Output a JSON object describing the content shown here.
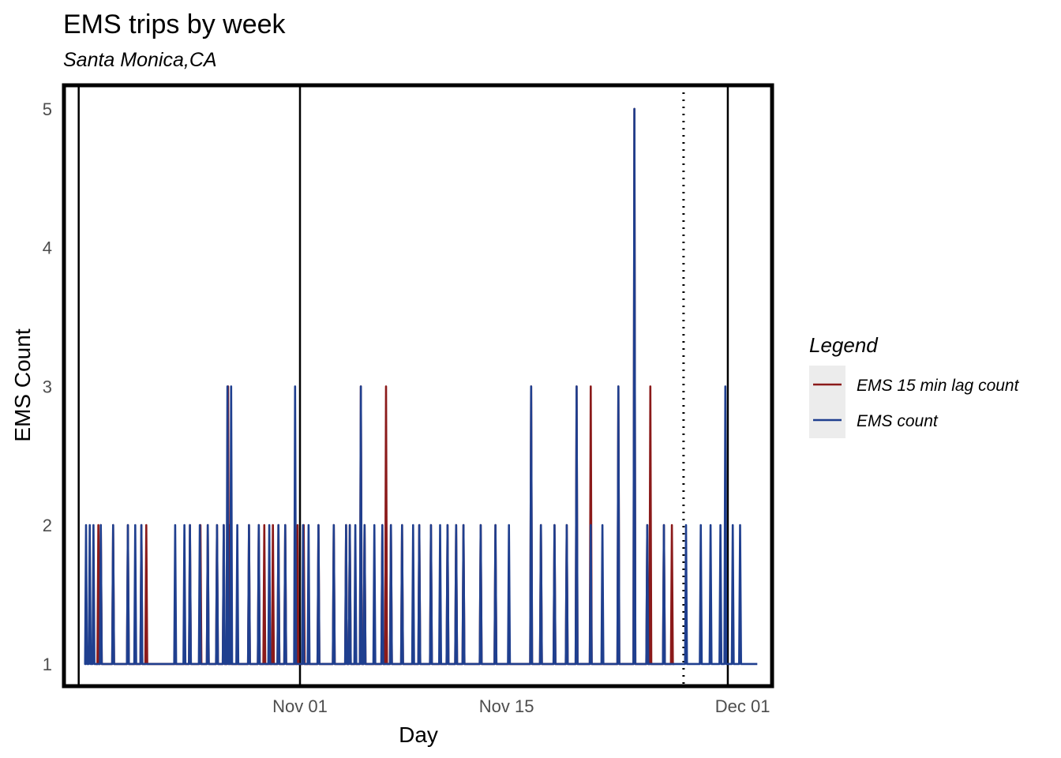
{
  "chart_data": {
    "type": "line",
    "title": "EMS trips by week",
    "subtitle": "Santa Monica,CA",
    "xlabel": "Day",
    "ylabel": "EMS Count",
    "x_type": "date",
    "xlim": [
      "2019-10-16",
      "2019-12-03"
    ],
    "ylim": [
      0.84,
      5.17
    ],
    "x_ticks": [
      {
        "date": "2019-11-01",
        "label": "Nov 01"
      },
      {
        "date": "2019-11-15",
        "label": "Nov 15"
      },
      {
        "date": "2019-12-01",
        "label": "Dec 01"
      }
    ],
    "y_ticks": [
      1,
      2,
      3,
      4,
      5
    ],
    "grid": false,
    "legend": {
      "title": "Legend",
      "placement": "right",
      "entries": [
        {
          "label": "EMS 15 min lag count",
          "color": "#8B1A1A"
        },
        {
          "label": "EMS count",
          "color": "#1F3F8F"
        }
      ]
    },
    "vertical_lines": [
      {
        "date": "2019-10-17",
        "style": "solid"
      },
      {
        "date": "2019-11-01",
        "style": "solid"
      },
      {
        "date": "2019-11-30",
        "style": "solid"
      },
      {
        "date": "2019-11-27",
        "style": "dotted"
      }
    ],
    "series": [
      {
        "name": "EMS 15 min lag count",
        "color": "#8B1A1A",
        "spikes": [
          [
            "2019-10-18 08:00",
            2
          ],
          [
            "2019-10-18 12:00",
            2
          ],
          [
            "2019-10-19 08:00",
            2
          ],
          [
            "2019-10-20 08:00",
            2
          ],
          [
            "2019-10-21 06:00",
            2
          ],
          [
            "2019-10-21 14:00",
            2
          ],
          [
            "2019-10-24 13:00",
            2
          ],
          [
            "2019-10-25 06:00",
            2
          ],
          [
            "2019-10-25 18:00",
            2
          ],
          [
            "2019-10-26 09:00",
            2
          ],
          [
            "2019-10-26 20:00",
            2
          ],
          [
            "2019-10-27 03:00",
            3
          ],
          [
            "2019-10-27 06:00",
            2
          ],
          [
            "2019-10-28 13:00",
            2
          ],
          [
            "2019-10-29 05:00",
            2
          ],
          [
            "2019-10-29 14:00",
            2
          ],
          [
            "2019-10-30 04:00",
            2
          ],
          [
            "2019-10-30 13:00",
            2
          ],
          [
            "2019-10-31 00:00",
            2
          ],
          [
            "2019-10-31 20:00",
            2
          ],
          [
            "2019-11-01 06:00",
            2
          ],
          [
            "2019-11-02 06:00",
            2
          ],
          [
            "2019-11-03 07:00",
            2
          ],
          [
            "2019-11-04 03:00",
            2
          ],
          [
            "2019-11-04 09:00",
            2
          ],
          [
            "2019-11-05 03:00",
            3
          ],
          [
            "2019-11-05 09:00",
            2
          ],
          [
            "2019-11-06 14:00",
            2
          ],
          [
            "2019-11-06 20:00",
            3
          ],
          [
            "2019-11-07 04:00",
            2
          ],
          [
            "2019-11-07 22:00",
            2
          ],
          [
            "2019-11-09 02:00",
            2
          ],
          [
            "2019-11-09 21:00",
            2
          ],
          [
            "2019-11-11 00:00",
            2
          ],
          [
            "2019-11-11 14:00",
            2
          ],
          [
            "2019-11-12 02:00",
            2
          ],
          [
            "2019-11-13 06:00",
            2
          ],
          [
            "2019-11-14 06:00",
            2
          ],
          [
            "2019-11-16 16:00",
            3
          ],
          [
            "2019-11-17 08:00",
            2
          ],
          [
            "2019-11-18 06:00",
            2
          ],
          [
            "2019-11-19 02:00",
            2
          ],
          [
            "2019-11-19 18:00",
            3
          ],
          [
            "2019-11-20 17:00",
            3
          ],
          [
            "2019-11-22 14:00",
            3
          ],
          [
            "2019-11-23 16:00",
            5
          ],
          [
            "2019-11-24 13:00",
            2
          ],
          [
            "2019-11-24 18:00",
            3
          ],
          [
            "2019-11-25 16:00",
            2
          ],
          [
            "2019-11-26 05:00",
            2
          ]
        ]
      },
      {
        "name": "EMS count",
        "color": "#1F3F8F",
        "spikes": [
          [
            "2019-10-17 12:00",
            2
          ],
          [
            "2019-10-17 18:00",
            2
          ],
          [
            "2019-10-18 00:00",
            2
          ],
          [
            "2019-10-18 12:00",
            2
          ],
          [
            "2019-10-19 08:00",
            2
          ],
          [
            "2019-10-20 08:00",
            2
          ],
          [
            "2019-10-20 20:00",
            2
          ],
          [
            "2019-10-21 06:00",
            2
          ],
          [
            "2019-10-23 13:00",
            2
          ],
          [
            "2019-10-24 04:00",
            2
          ],
          [
            "2019-10-24 13:00",
            2
          ],
          [
            "2019-10-25 05:00",
            2
          ],
          [
            "2019-10-25 18:00",
            2
          ],
          [
            "2019-10-26 09:00",
            2
          ],
          [
            "2019-10-26 20:00",
            2
          ],
          [
            "2019-10-27 02:00",
            3
          ],
          [
            "2019-10-27 08:00",
            3
          ],
          [
            "2019-10-27 18:00",
            2
          ],
          [
            "2019-10-28 13:00",
            2
          ],
          [
            "2019-10-29 05:00",
            2
          ],
          [
            "2019-10-29 22:00",
            2
          ],
          [
            "2019-10-30 13:00",
            2
          ],
          [
            "2019-10-31 00:00",
            2
          ],
          [
            "2019-10-31 16:00",
            3
          ],
          [
            "2019-11-01 05:00",
            2
          ],
          [
            "2019-11-01 14:00",
            2
          ],
          [
            "2019-11-02 06:00",
            2
          ],
          [
            "2019-11-03 07:00",
            2
          ],
          [
            "2019-11-04 03:00",
            2
          ],
          [
            "2019-11-04 09:00",
            2
          ],
          [
            "2019-11-04 18:00",
            2
          ],
          [
            "2019-11-05 03:00",
            3
          ],
          [
            "2019-11-05 09:00",
            2
          ],
          [
            "2019-11-06 01:00",
            2
          ],
          [
            "2019-11-06 14:00",
            2
          ],
          [
            "2019-11-07 04:00",
            2
          ],
          [
            "2019-11-07 22:00",
            2
          ],
          [
            "2019-11-08 16:00",
            2
          ],
          [
            "2019-11-09 02:00",
            2
          ],
          [
            "2019-11-09 21:00",
            2
          ],
          [
            "2019-11-10 12:00",
            2
          ],
          [
            "2019-11-11 00:00",
            2
          ],
          [
            "2019-11-11 14:00",
            2
          ],
          [
            "2019-11-12 02:00",
            2
          ],
          [
            "2019-11-13 06:00",
            2
          ],
          [
            "2019-11-14 06:00",
            2
          ],
          [
            "2019-11-15 04:00",
            2
          ],
          [
            "2019-11-16 16:00",
            3
          ],
          [
            "2019-11-17 08:00",
            2
          ],
          [
            "2019-11-18 06:00",
            2
          ],
          [
            "2019-11-19 02:00",
            2
          ],
          [
            "2019-11-19 18:00",
            3
          ],
          [
            "2019-11-20 17:00",
            2
          ],
          [
            "2019-11-21 12:00",
            2
          ],
          [
            "2019-11-22 14:00",
            3
          ],
          [
            "2019-11-23 16:00",
            5
          ],
          [
            "2019-11-24 13:00",
            2
          ],
          [
            "2019-11-25 16:00",
            2
          ],
          [
            "2019-11-27 04:00",
            2
          ],
          [
            "2019-11-28 04:00",
            2
          ],
          [
            "2019-11-28 20:00",
            2
          ],
          [
            "2019-11-29 12:00",
            2
          ],
          [
            "2019-11-29 20:00",
            3
          ],
          [
            "2019-11-30 08:00",
            2
          ],
          [
            "2019-11-30 20:00",
            2
          ]
        ],
        "x_range": [
          "2019-10-17 12:00",
          "2019-12-02 00:00"
        ]
      }
    ]
  }
}
